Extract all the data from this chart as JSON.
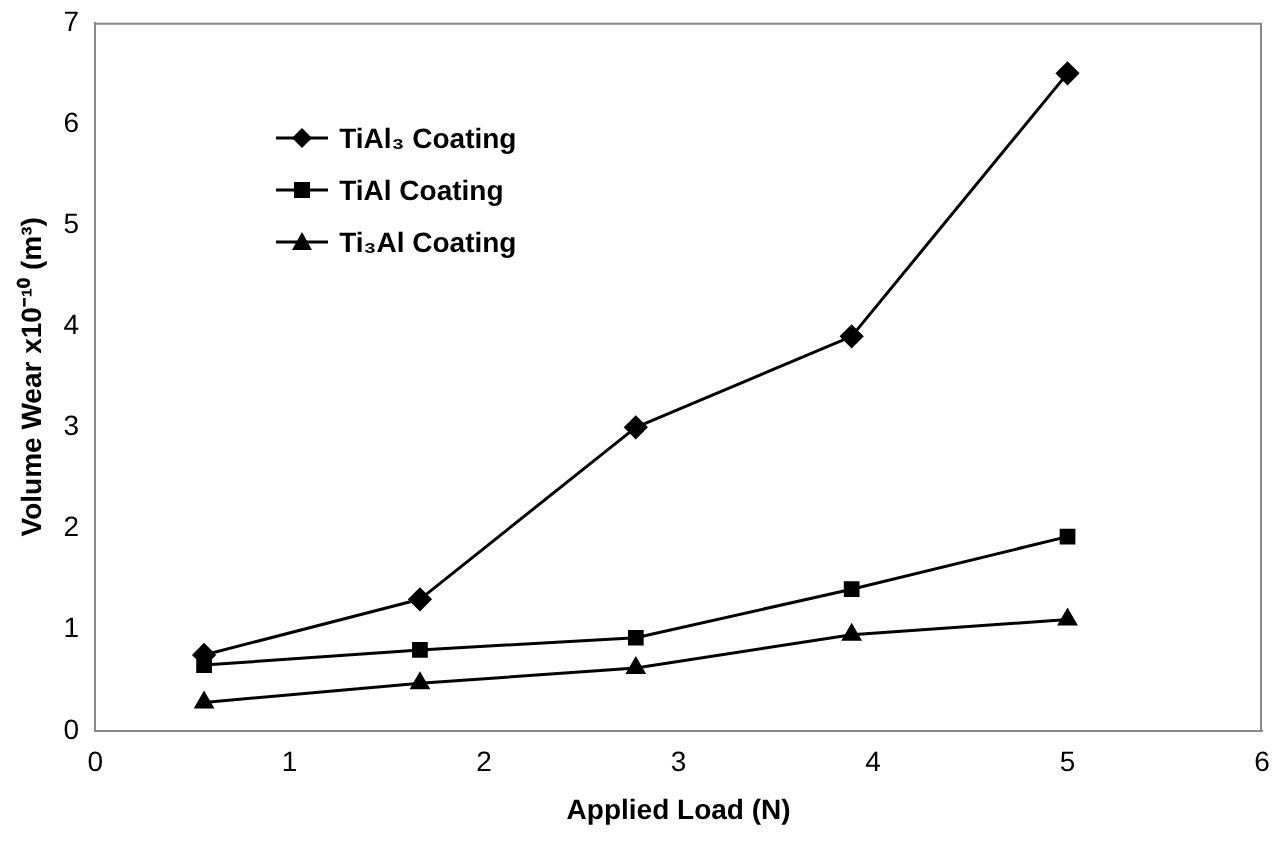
{
  "chart_data": {
    "type": "line",
    "xlabel": "Applied Load (N)",
    "ylabel": "Volume Wear x10⁻¹⁰ (m³)",
    "x": [
      0.56,
      1.67,
      2.78,
      3.89,
      5.0
    ],
    "series": [
      {
        "name": "TiAl₃ Coating",
        "color": "#000000",
        "marker": "diamond",
        "values": [
          0.75,
          1.3,
          3.0,
          3.9,
          6.5
        ]
      },
      {
        "name": "TiAl Coating",
        "color": "#000000",
        "marker": "square",
        "values": [
          0.65,
          0.8,
          0.92,
          1.4,
          1.92
        ]
      },
      {
        "name": "Ti₃Al Coating",
        "color": "#000000",
        "marker": "triangle",
        "values": [
          0.28,
          0.47,
          0.62,
          0.95,
          1.1
        ]
      }
    ],
    "xlim": [
      0,
      6
    ],
    "xticks": [
      0,
      1,
      2,
      3,
      4,
      5,
      6
    ],
    "ylim": [
      0,
      7
    ],
    "yticks": [
      0,
      1,
      2,
      3,
      4,
      5,
      6,
      7
    ],
    "grid": false,
    "legend": "top left",
    "line_style": "solid"
  }
}
